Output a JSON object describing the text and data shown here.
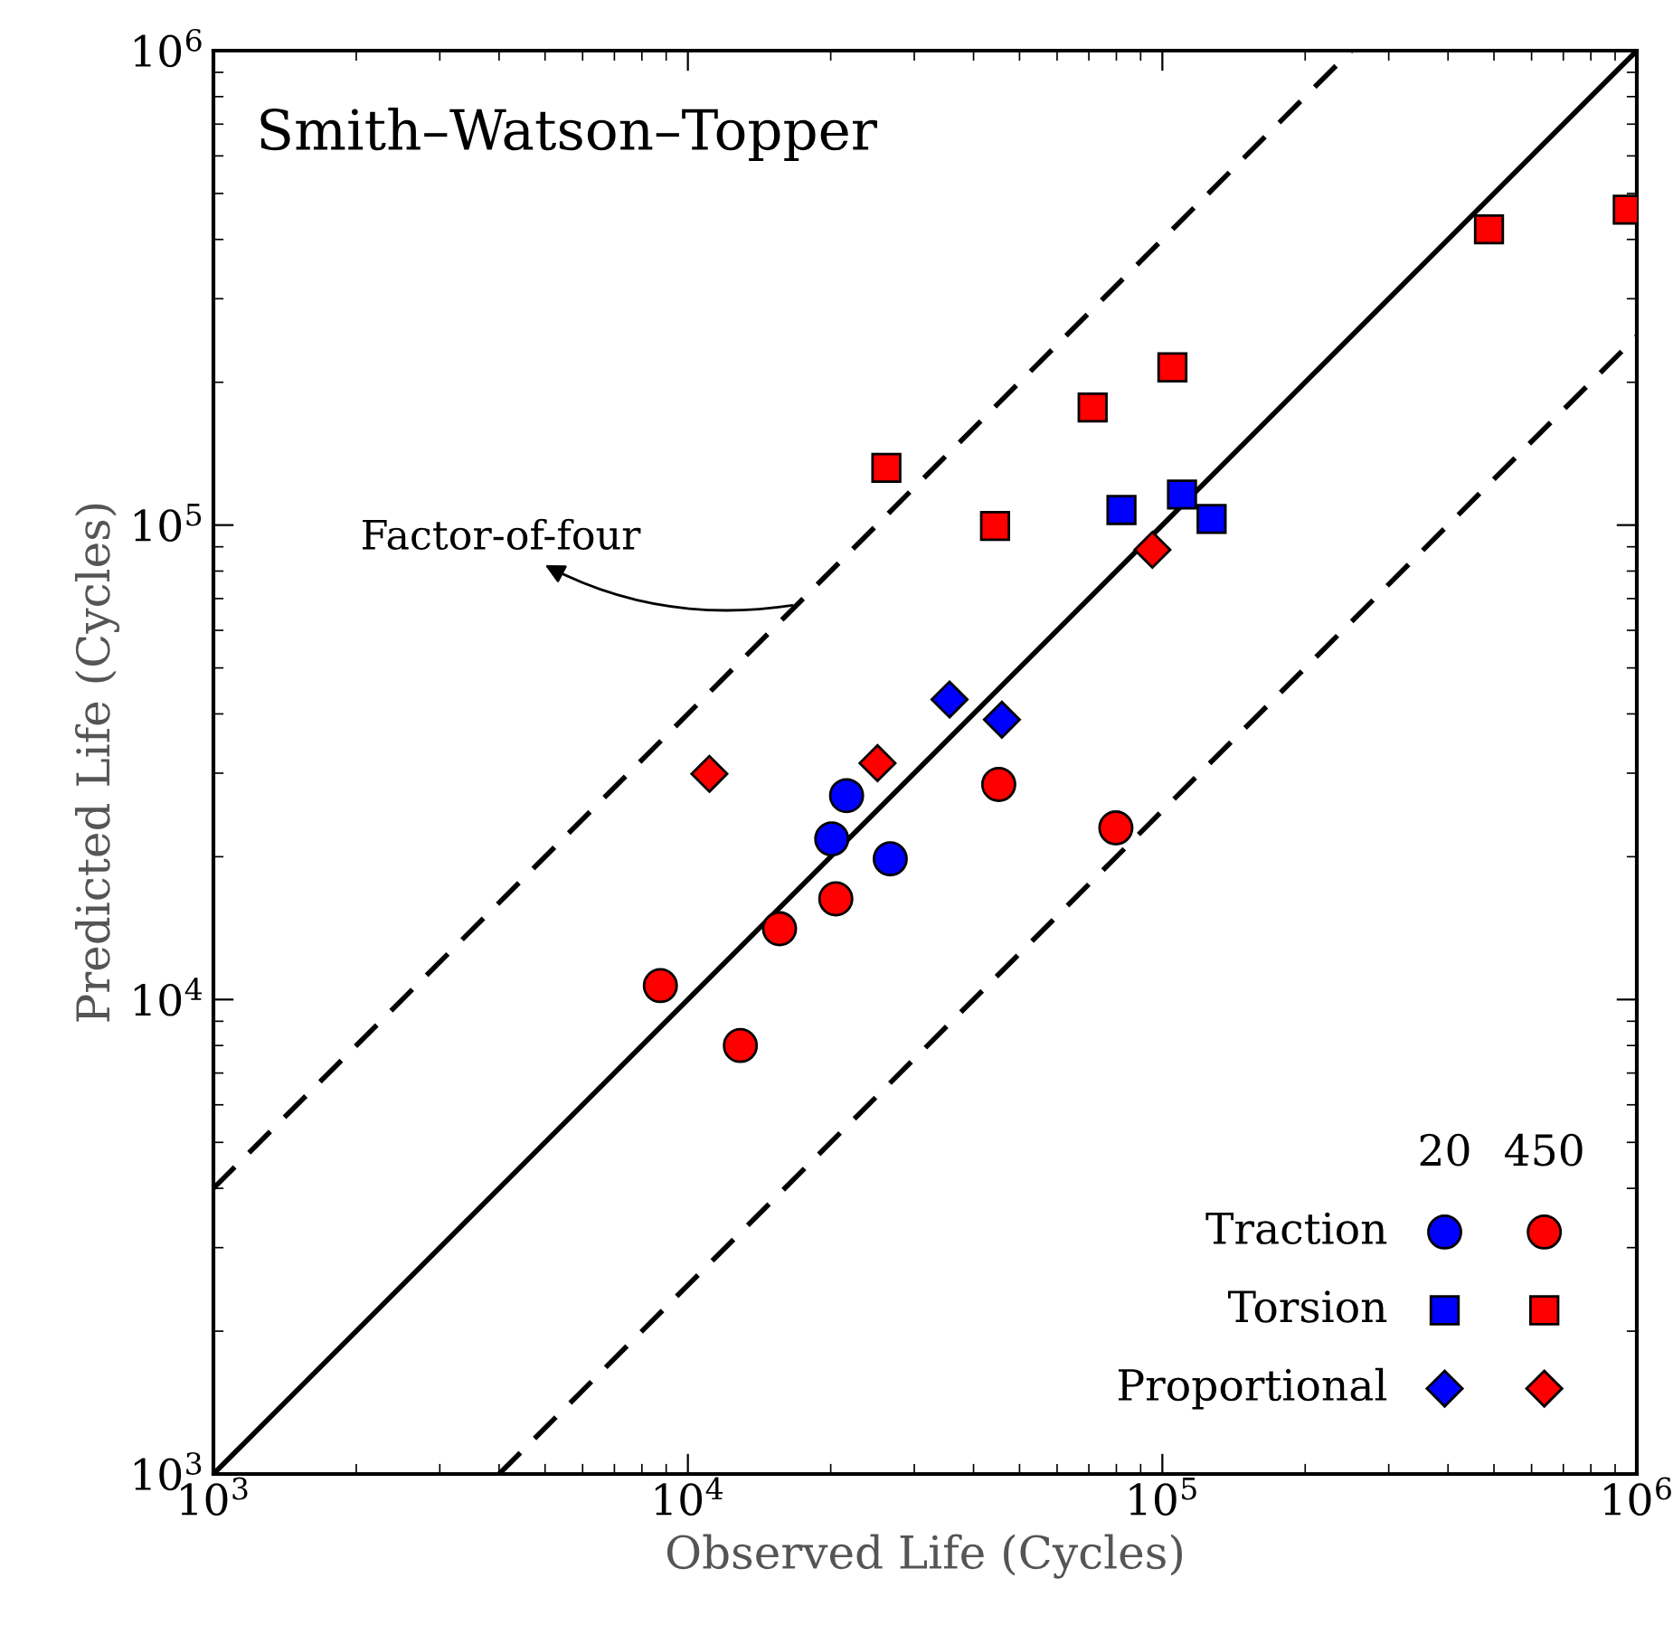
{
  "chart_data": {
    "type": "scatter",
    "title": "Smith–Watson–Topper",
    "xlabel": "Observed Life (Cycles)",
    "ylabel": "Predicted Life (Cycles)",
    "log": "xy",
    "grid": false,
    "legend": "bottom right",
    "xlim": [
      1000,
      1000000
    ],
    "ylim": [
      1000,
      1000000
    ],
    "xticks": [
      {
        "value": 1000,
        "label": "10$^{3}$"
      },
      {
        "value": 10000,
        "label": "10$^{4}$"
      },
      {
        "value": 100000,
        "label": "10$^{5}$"
      },
      {
        "value": 1000000,
        "label": "10$^{6}$"
      }
    ],
    "yticks": [
      {
        "value": 1000,
        "label": "10$^{3}$"
      },
      {
        "value": 10000,
        "label": "10$^{4}$"
      },
      {
        "value": 100000,
        "label": "10$^{5}$"
      },
      {
        "value": 1000000,
        "label": "10$^{6}$"
      }
    ],
    "annotations": [
      {
        "text": "Factor-of-four",
        "x": 17000,
        "y": 68000
      },
      "20",
      "450"
    ],
    "series": [
      {
        "name": "Traction",
        "marker": "circle",
        "color": "#0000ff",
        "x": [
          21600,
          20100,
          26700
        ],
        "values": [
          26900,
          21800,
          19800
        ]
      },
      {
        "name": "Torsion",
        "marker": "square",
        "color": "#0000ff",
        "x": [
          82000,
          110000,
          127000
        ],
        "values": [
          107600,
          116000,
          103000
        ]
      },
      {
        "name": "Proportional",
        "marker": "diamond",
        "color": "#0000ff",
        "x": [
          35600,
          45900
        ],
        "values": [
          42900,
          38900
        ]
      },
      {
        "marker": "circle",
        "color": "#ff0000",
        "x": [
          8750,
          12900,
          15600,
          20500,
          45200,
          79800
        ],
        "values": [
          10700,
          8000,
          14100,
          16300,
          28400,
          23000
        ]
      },
      {
        "marker": "square",
        "color": "#ff0000",
        "x": [
          26200,
          44400,
          71300,
          105000,
          488000,
          957000
        ],
        "values": [
          132000,
          99600,
          177000,
          215000,
          420000,
          462000
        ]
      },
      {
        "marker": "diamond",
        "color": "#ff0000",
        "x": [
          11100,
          25100,
          95300
        ],
        "values": [
          29900,
          31500,
          88700
        ]
      },
      {
        "type": "line",
        "line_style": "solid",
        "color": "#000000",
        "x": [
          1000,
          1000000
        ],
        "values": [
          1000,
          1000000
        ]
      },
      {
        "type": "line",
        "line_style": "dashed",
        "color": "#000000",
        "x": [
          1000,
          250000
        ],
        "values": [
          4000,
          1000000
        ]
      },
      {
        "type": "line",
        "line_style": "dashed",
        "color": "#000000",
        "x": [
          4000,
          1000000
        ],
        "values": [
          1000,
          250000
        ]
      }
    ]
  }
}
